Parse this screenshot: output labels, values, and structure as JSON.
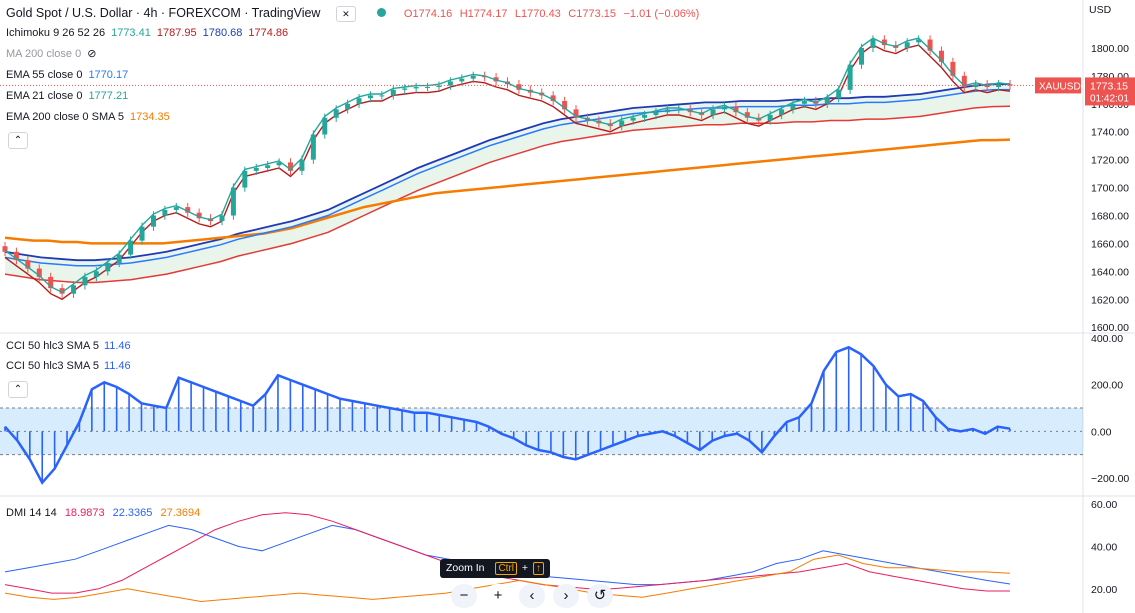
{
  "header": {
    "symbol": "Gold Spot / U.S. Dollar · 4h · FOREXCOM · TradingView",
    "ohlc": {
      "o": "O1774.16",
      "h": "H1774.17",
      "l": "L1770.43",
      "c": "C1773.15",
      "chg": "−1.01 (−0.06%)"
    },
    "currency": "USD"
  },
  "legend": [
    {
      "label": "Ichimoku 9 26 52 26",
      "values": [
        {
          "v": "1773.41",
          "color": "#26a69a"
        },
        {
          "v": "1787.95",
          "color": "#b71c1c"
        },
        {
          "v": "1780.68",
          "color": "#1e40af"
        },
        {
          "v": "1774.86",
          "color": "#b71c1c"
        }
      ]
    },
    {
      "label": "MA 200 close 0",
      "values": [],
      "muted": true
    },
    {
      "label": "EMA 55 close 0",
      "values": [
        {
          "v": "1770.17",
          "color": "#2979ff"
        }
      ]
    },
    {
      "label": "EMA 21 close 0",
      "values": [
        {
          "v": "1777.21",
          "color": "#26a69a"
        }
      ]
    },
    {
      "label": "EMA 200 close 0 SMA 5",
      "values": [
        {
          "v": "1734.35",
          "color": "#f57c00"
        }
      ]
    }
  ],
  "cci_legend": [
    {
      "label": "CCI 50 hlc3 SMA 5",
      "value": "11.46"
    },
    {
      "label": "CCI 50 hlc3 SMA 5",
      "value": "11.46"
    }
  ],
  "dmi_legend": {
    "label": "DMI 14 14",
    "values": [
      {
        "v": "18.9873",
        "color": "#e91e63"
      },
      {
        "v": "22.3365",
        "color": "#2962ff"
      },
      {
        "v": "27.3694",
        "color": "#f57c00"
      }
    ]
  },
  "price_labels": {
    "last": "1773.15",
    "countdown": "01:42:01",
    "ticker": "XAUUSD"
  },
  "tooltip": {
    "text": "Zoom In",
    "k1": "Ctrl",
    "k2": "+",
    "k3": "↑"
  },
  "toolbar": {
    "minus": "−",
    "plus": "+",
    "left": "‹",
    "right": "›",
    "reset": "↺"
  },
  "colors": {
    "up": "#26a69a",
    "down": "#ef5350",
    "cci": "#2962ff",
    "ema200": "#f57c00",
    "ema55": "#2979ff",
    "ema21": "#26a69a",
    "senkouA": "#e53935",
    "senkouB": "#1e3ab5",
    "kijun": "#b71c1c"
  },
  "chart_data": [
    {
      "type": "line",
      "panel": "price",
      "yticks": [
        1600,
        1620,
        1640,
        1660,
        1680,
        1700,
        1720,
        1740,
        1760,
        1780,
        1800
      ],
      "ylim": [
        1598,
        1820
      ],
      "close": [
        1654,
        1648,
        1642,
        1636,
        1628,
        1624,
        1630,
        1636,
        1640,
        1646,
        1652,
        1662,
        1672,
        1680,
        1684,
        1686,
        1682,
        1678,
        1676,
        1680,
        1700,
        1712,
        1714,
        1716,
        1718,
        1712,
        1720,
        1738,
        1750,
        1756,
        1760,
        1764,
        1766,
        1766,
        1770,
        1771,
        1772,
        1772,
        1773,
        1776,
        1778,
        1780,
        1779,
        1776,
        1774,
        1770,
        1768,
        1766,
        1762,
        1756,
        1750,
        1748,
        1746,
        1744,
        1748,
        1750,
        1752,
        1754,
        1756,
        1756,
        1754,
        1752,
        1756,
        1758,
        1754,
        1750,
        1748,
        1752,
        1756,
        1760,
        1762,
        1760,
        1764,
        1770,
        1788,
        1800,
        1806,
        1802,
        1800,
        1804,
        1806,
        1798,
        1790,
        1780,
        1772,
        1774,
        1772,
        1774,
        1773
      ],
      "ema200": [
        1664,
        1663,
        1662,
        1662,
        1661,
        1661,
        1660,
        1660,
        1660,
        1660,
        1660,
        1660,
        1661,
        1662,
        1663,
        1664,
        1665,
        1666,
        1667,
        1669,
        1671,
        1674,
        1677,
        1680,
        1683,
        1686,
        1688,
        1690,
        1692,
        1694,
        1696,
        1697,
        1698,
        1699,
        1700,
        1701,
        1702,
        1703,
        1704,
        1705,
        1706,
        1707,
        1708,
        1709,
        1710,
        1711,
        1712,
        1713,
        1714,
        1715,
        1716,
        1717,
        1718,
        1719,
        1720,
        1721,
        1722,
        1723,
        1724,
        1725,
        1726,
        1727,
        1728,
        1729,
        1730,
        1731,
        1732,
        1733,
        1734,
        1734,
        1734.35
      ],
      "ema55": [
        1650,
        1648,
        1646,
        1645,
        1644,
        1644,
        1645,
        1646,
        1648,
        1650,
        1653,
        1656,
        1659,
        1663,
        1666,
        1669,
        1672,
        1676,
        1680,
        1686,
        1692,
        1698,
        1704,
        1710,
        1715,
        1720,
        1725,
        1730,
        1734,
        1738,
        1742,
        1745,
        1747,
        1749,
        1751,
        1753,
        1754,
        1755,
        1756,
        1757,
        1757,
        1758,
        1758,
        1758,
        1759,
        1759,
        1760,
        1760,
        1761,
        1761,
        1762,
        1763,
        1765,
        1767,
        1769,
        1770,
        1770.17
      ],
      "dmi_plus": [
        28,
        30,
        32,
        34,
        38,
        42,
        46,
        50,
        48,
        44,
        40,
        38,
        42,
        46,
        50,
        48,
        44,
        40,
        36,
        34,
        32,
        30,
        28,
        26,
        25,
        24,
        23,
        22,
        22,
        23,
        24,
        26,
        28,
        32,
        34,
        38,
        36,
        34,
        32,
        30,
        28,
        26,
        24,
        22.3
      ],
      "dmi_minus": [
        22,
        20,
        18,
        18,
        20,
        24,
        30,
        36,
        42,
        48,
        52,
        55,
        56,
        55,
        52,
        48,
        44,
        40,
        36,
        32,
        28,
        26,
        24,
        22,
        21,
        20,
        20,
        21,
        22,
        23,
        24,
        25,
        26,
        27,
        28,
        30,
        32,
        28,
        26,
        24,
        22,
        20,
        19,
        18.99
      ],
      "adx": [
        18,
        16,
        15,
        16,
        18,
        20,
        18,
        16,
        14,
        15,
        16,
        17,
        18,
        17,
        16,
        15,
        16,
        17,
        18,
        20,
        22,
        24,
        22,
        20,
        18,
        17,
        16,
        18,
        20,
        22,
        24,
        26,
        28,
        34,
        36,
        32,
        30,
        30,
        29,
        28,
        28,
        27.4
      ]
    },
    {
      "type": "bar",
      "panel": "cci",
      "yticks": [
        -200,
        0,
        200,
        400
      ],
      "band": [
        -100,
        100
      ],
      "values": [
        20,
        -40,
        -120,
        -220,
        -160,
        -60,
        40,
        180,
        210,
        190,
        160,
        120,
        110,
        100,
        230,
        210,
        190,
        170,
        150,
        130,
        110,
        160,
        240,
        220,
        200,
        180,
        160,
        140,
        130,
        120,
        110,
        100,
        90,
        80,
        80,
        70,
        60,
        50,
        40,
        20,
        -10,
        -30,
        -60,
        -80,
        -90,
        -110,
        -120,
        -100,
        -80,
        -60,
        -40,
        -20,
        -10,
        0,
        -20,
        -50,
        -80,
        -40,
        -20,
        -10,
        -40,
        -90,
        -20,
        40,
        60,
        120,
        260,
        340,
        360,
        330,
        280,
        200,
        150,
        160,
        130,
        60,
        10,
        0,
        10,
        -10,
        20,
        11.46
      ]
    }
  ]
}
